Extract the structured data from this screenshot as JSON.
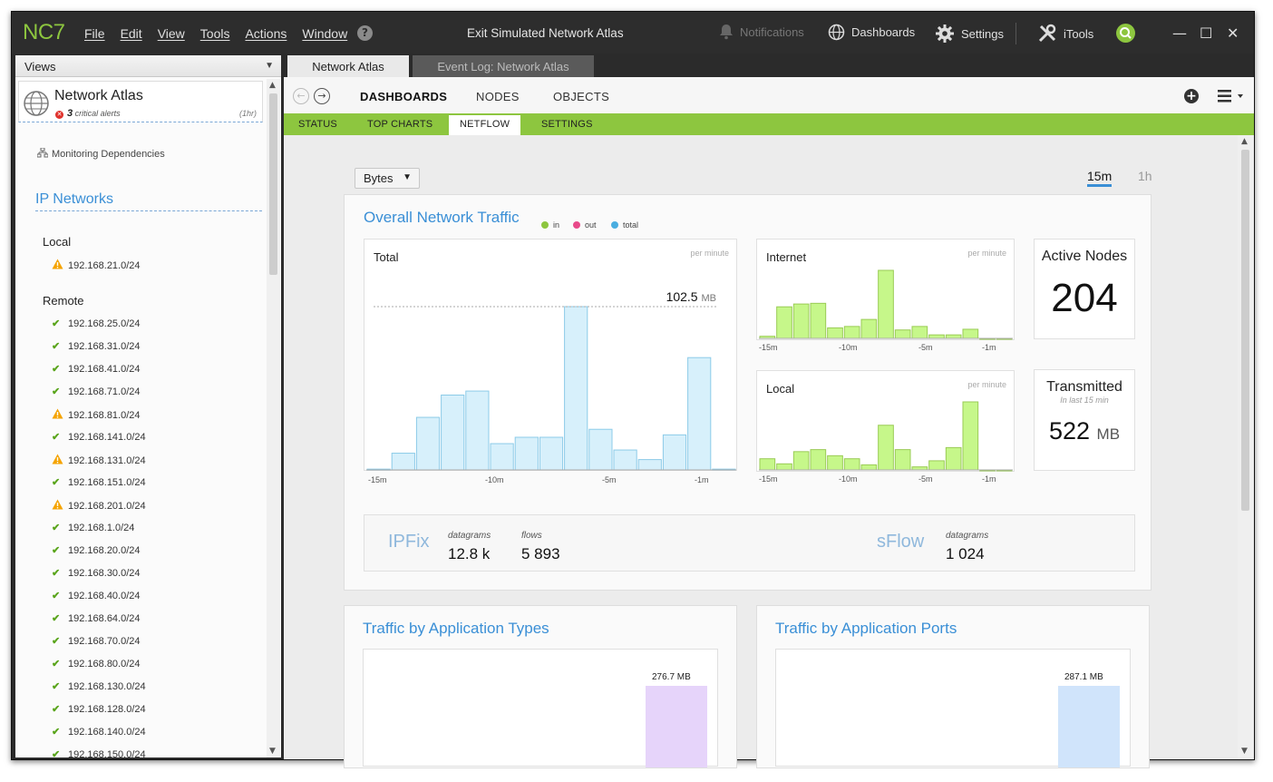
{
  "app": {
    "logo": "NC7",
    "menu": [
      "File",
      "Edit",
      "View",
      "Tools",
      "Actions",
      "Window"
    ],
    "help_icon": "help-icon",
    "window_title": "Exit Simulated Network Atlas",
    "toolbar": {
      "notifications": "Notifications",
      "dashboards": "Dashboards",
      "settings": "Settings",
      "itools": "iTools"
    },
    "window_controls": {
      "minimize": "—",
      "maximize": "☐",
      "close": "✕"
    }
  },
  "sidebar": {
    "header": "Views",
    "atlas": {
      "title": "Network Atlas",
      "alert_count": "3",
      "alert_text": "critical alerts",
      "time": "(1hr)"
    },
    "monitoring": "Monitoring Dependencies",
    "section": "IP Networks",
    "local_label": "Local",
    "local_networks": [
      {
        "addr": "192.168.21.0/24",
        "status": "warning"
      }
    ],
    "remote_label": "Remote",
    "remote_networks": [
      {
        "addr": "192.168.25.0/24",
        "status": "ok"
      },
      {
        "addr": "192.168.31.0/24",
        "status": "ok"
      },
      {
        "addr": "192.168.41.0/24",
        "status": "ok"
      },
      {
        "addr": "192.168.71.0/24",
        "status": "ok"
      },
      {
        "addr": "192.168.81.0/24",
        "status": "warning"
      },
      {
        "addr": "192.168.141.0/24",
        "status": "ok"
      },
      {
        "addr": "192.168.131.0/24",
        "status": "warning"
      },
      {
        "addr": "192.168.151.0/24",
        "status": "ok"
      },
      {
        "addr": "192.168.201.0/24",
        "status": "warning"
      },
      {
        "addr": "192.168.1.0/24",
        "status": "ok"
      },
      {
        "addr": "192.168.20.0/24",
        "status": "ok"
      },
      {
        "addr": "192.168.30.0/24",
        "status": "ok"
      },
      {
        "addr": "192.168.40.0/24",
        "status": "ok"
      },
      {
        "addr": "192.168.64.0/24",
        "status": "ok"
      },
      {
        "addr": "192.168.70.0/24",
        "status": "ok"
      },
      {
        "addr": "192.168.80.0/24",
        "status": "ok"
      },
      {
        "addr": "192.168.130.0/24",
        "status": "ok"
      },
      {
        "addr": "192.168.128.0/24",
        "status": "ok"
      },
      {
        "addr": "192.168.140.0/24",
        "status": "ok"
      },
      {
        "addr": "192.168.150.0/24",
        "status": "ok"
      }
    ]
  },
  "tabs": [
    "Network Atlas",
    "Event Log: Network Atlas"
  ],
  "nav": [
    "DASHBOARDS",
    "NODES",
    "OBJECTS"
  ],
  "subnav": [
    "STATUS",
    "TOP CHARTS",
    "NETFLOW",
    "SETTINGS"
  ],
  "controls": {
    "unit_select": "Bytes",
    "range_15m": "15m",
    "range_1h": "1h"
  },
  "overall": {
    "title": "Overall Network Traffic",
    "legend": [
      {
        "name": "in",
        "color": "#8dc63f"
      },
      {
        "name": "out",
        "color": "#e84a8a"
      },
      {
        "name": "total",
        "color": "#4aaee0"
      }
    ],
    "per_minute": "per minute",
    "total_label": "Total",
    "internet_label": "Internet",
    "local_label": "Local",
    "peak_value": "102.5",
    "peak_unit": "MB",
    "ticks": [
      "-15m",
      "-10m",
      "-5m",
      "-1m"
    ],
    "active_nodes_label": "Active Nodes",
    "active_nodes_value": "204",
    "transmitted_label": "Transmitted",
    "transmitted_sub": "In last 15 min",
    "transmitted_value": "522",
    "transmitted_unit": "MB",
    "ipfix_label": "IPFix",
    "ipfix_datagrams_label": "datagrams",
    "ipfix_datagrams": "12.8 k",
    "ipfix_flows_label": "flows",
    "ipfix_flows": "5 893",
    "sflow_label": "sFlow",
    "sflow_datagrams_label": "datagrams",
    "sflow_datagrams": "1 024"
  },
  "app_types": {
    "title": "Traffic by Application Types",
    "bar_label": "276.7 MB"
  },
  "app_ports": {
    "title": "Traffic by Application Ports",
    "bar_label": "287.1 MB"
  },
  "chart_data": [
    {
      "type": "bar",
      "title": "Total",
      "unit": "MB per minute",
      "x": [
        "-15m",
        "-14m",
        "-13m",
        "-12m",
        "-11m",
        "-10m",
        "-9m",
        "-8m",
        "-7m",
        "-6m",
        "-5m",
        "-4m",
        "-3m",
        "-2m",
        "-1m"
      ],
      "values": [
        0.5,
        10.5,
        33,
        47,
        49.5,
        16.5,
        20.5,
        20.5,
        102.5,
        25.5,
        12.5,
        6.5,
        22,
        70.5,
        0.5
      ],
      "annotation": "102.5 MB",
      "color": "#d7f0fb"
    },
    {
      "type": "bar",
      "title": "Internet",
      "unit": "per minute",
      "x": [
        "-15m",
        "-14m",
        "-13m",
        "-12m",
        "-11m",
        "-10m",
        "-9m",
        "-8m",
        "-7m",
        "-6m",
        "-5m",
        "-4m",
        "-3m",
        "-2m",
        "-1m"
      ],
      "values": [
        3,
        45,
        49,
        50,
        15,
        17,
        27,
        97,
        12,
        17,
        5,
        5,
        13,
        0,
        0
      ],
      "color": "#c6f78a"
    },
    {
      "type": "bar",
      "title": "Local",
      "unit": "per minute",
      "x": [
        "-15m",
        "-14m",
        "-13m",
        "-12m",
        "-11m",
        "-10m",
        "-9m",
        "-8m",
        "-7m",
        "-6m",
        "-5m",
        "-4m",
        "-3m",
        "-2m",
        "-1m"
      ],
      "values": [
        11,
        6,
        18,
        20,
        14,
        11,
        5,
        44,
        20,
        3,
        9,
        22,
        67,
        0,
        0
      ],
      "color": "#c6f78a"
    },
    {
      "type": "bar",
      "title": "Traffic by Application Types",
      "values": [
        276.7
      ],
      "unit": "MB",
      "color": "#e6d4fa"
    },
    {
      "type": "bar",
      "title": "Traffic by Application Ports",
      "values": [
        287.1
      ],
      "unit": "MB",
      "color": "#d0e4fb"
    }
  ]
}
